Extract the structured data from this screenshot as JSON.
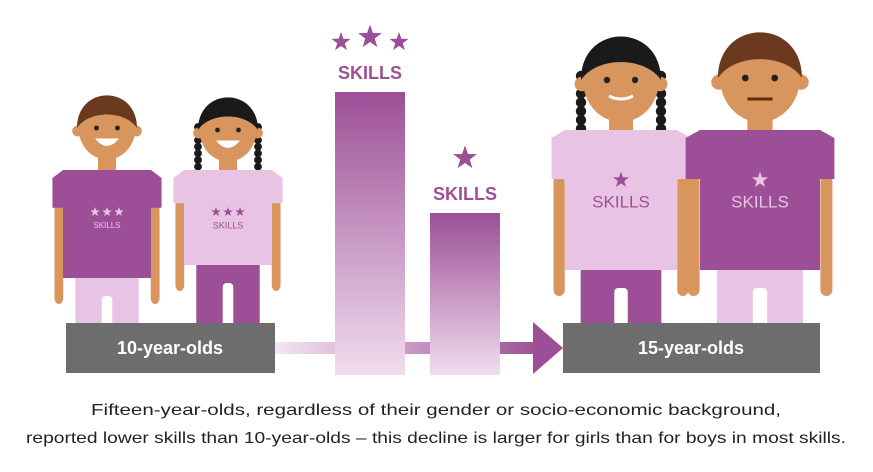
{
  "bars": [
    {
      "label": "SKILLS"
    },
    {
      "label": "SKILLS"
    }
  ],
  "figures": [
    {
      "shirt_label": "SKILLS"
    },
    {
      "shirt_label": "SKILLS"
    },
    {
      "shirt_label": "SKILLS"
    },
    {
      "shirt_label": "SKILLS"
    }
  ],
  "pedestals": [
    "10-year-olds",
    "15-year-olds"
  ],
  "caption": [
    "Fifteen-year-olds, regardless of their gender or socio-economic background,",
    "reported lower skills than 10-year-olds – this decline is larger for girls than for boys in most skills."
  ]
}
